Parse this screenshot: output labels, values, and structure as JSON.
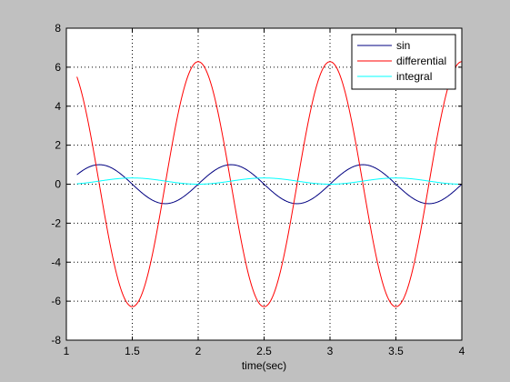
{
  "chart_data": {
    "type": "line",
    "xlabel": "time(sec)",
    "ylabel": "",
    "title": "",
    "xlim": [
      1,
      4
    ],
    "ylim": [
      -8,
      8
    ],
    "xticks": [
      1,
      1.5,
      2,
      2.5,
      3,
      3.5,
      4
    ],
    "xtick_labels": [
      "1",
      "1.5",
      "2",
      "2.5",
      "3",
      "3.5",
      "4"
    ],
    "yticks": [
      -8,
      -6,
      -4,
      -2,
      0,
      2,
      4,
      6,
      8
    ],
    "ytick_labels": [
      "-8",
      "-6",
      "-4",
      "-2",
      "0",
      "2",
      "4",
      "6",
      "8"
    ],
    "grid": true,
    "legend_position": "top-right",
    "x_range": [
      1.08,
      4.0
    ],
    "series": [
      {
        "name": "sin",
        "color": "#000080",
        "expression": "sin(2*pi*t)",
        "amplitude": 1
      },
      {
        "name": "differential",
        "color": "#ff0000",
        "expression": "2*pi*cos(2*pi*t)",
        "amplitude": 6.283
      },
      {
        "name": "integral",
        "color": "#00ffff",
        "expression": "(1-cos(2*pi*t))/(2*pi)",
        "amplitude": 0.318
      }
    ]
  }
}
